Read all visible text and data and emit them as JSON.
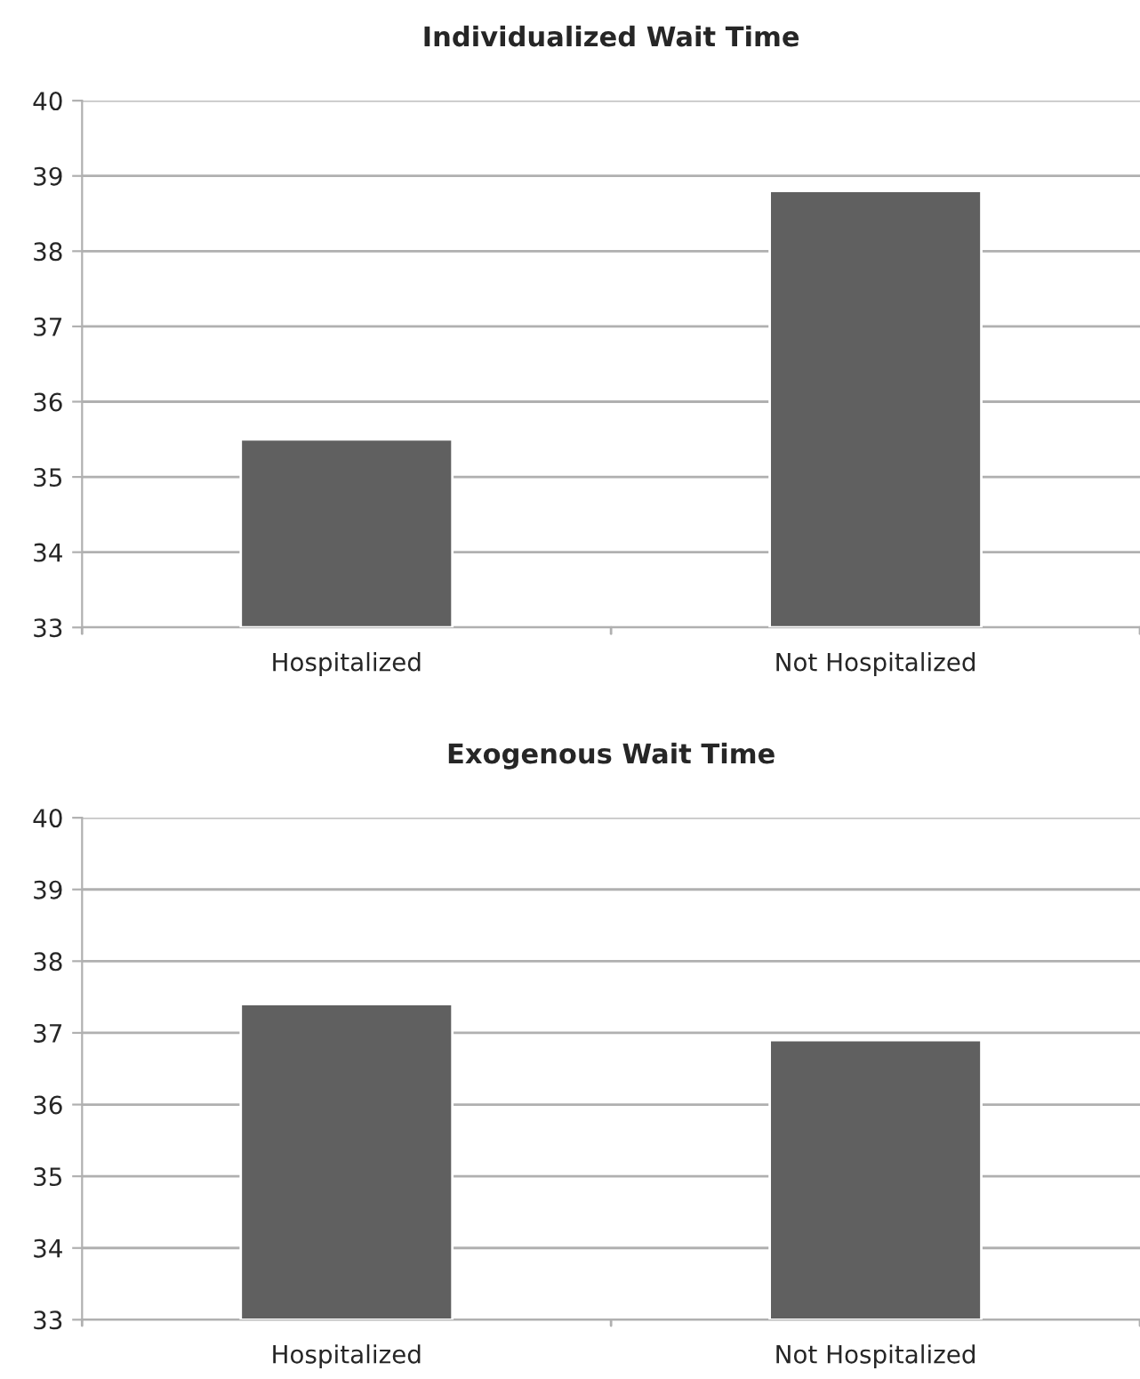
{
  "chart_data": [
    {
      "type": "bar",
      "title": "Individualized Wait Time",
      "categories": [
        "Hospitalized",
        "Not Hospitalized"
      ],
      "values": [
        35.5,
        38.8
      ],
      "color": "#606060",
      "ylim": [
        33,
        40
      ],
      "yticks": [
        33,
        34,
        35,
        36,
        37,
        38,
        39,
        40
      ],
      "grid": "y"
    },
    {
      "type": "bar",
      "title": "Exogenous Wait Time",
      "categories": [
        "Hospitalized",
        "Not Hospitalized"
      ],
      "values": [
        37.4,
        36.9
      ],
      "color": "#606060",
      "ylim": [
        33,
        40
      ],
      "yticks": [
        33,
        34,
        35,
        36,
        37,
        38,
        39,
        40
      ],
      "grid": "y"
    }
  ]
}
